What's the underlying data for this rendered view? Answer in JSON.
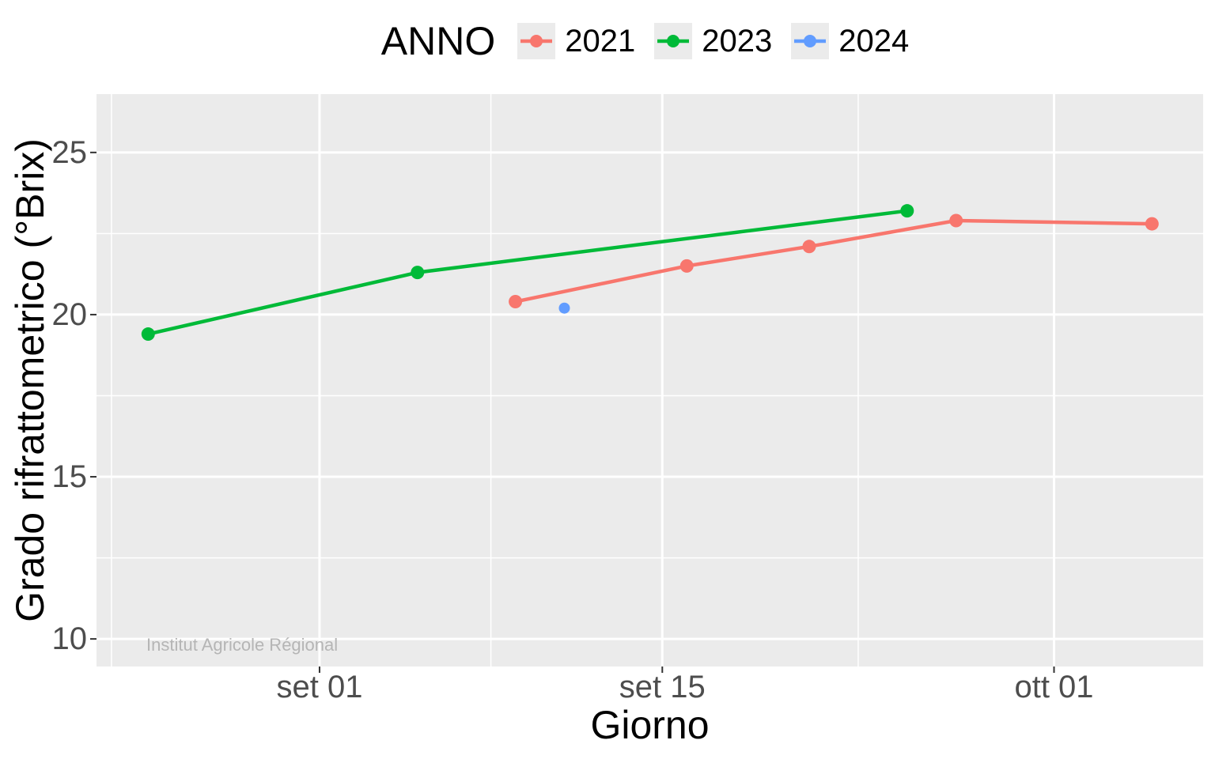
{
  "figure": {
    "panel_bg": "#EBEBEB",
    "grid_color": "#FFFFFF",
    "tick_color": "#333333",
    "tick_label_color": "#4D4D4D",
    "watermark": "Institut Agricole Régional",
    "watermark_color": "#B5B5B5"
  },
  "legend": {
    "title": "ANNO",
    "items": [
      {
        "label": "2021",
        "color": "#F8766D"
      },
      {
        "label": "2023",
        "color": "#00BA38"
      },
      {
        "label": "2024",
        "color": "#619CFF"
      }
    ]
  },
  "chart_data": {
    "type": "line",
    "title": "",
    "xlabel": "Giorno",
    "ylabel": "Grado rifrattometrico (°Brix)",
    "x_unit": "day offset from set 01",
    "x_domain_days": [
      -9.11,
      36.09
    ],
    "ylim": [
      9.15,
      26.8
    ],
    "grid": true,
    "legend_position": "top",
    "x_ticks": [
      {
        "label": "set 01",
        "day": 0
      },
      {
        "label": "set 15",
        "day": 14
      },
      {
        "label": "ott 01",
        "day": 30
      }
    ],
    "x_minor_days": [
      -8.5,
      7,
      22
    ],
    "y_ticks": [
      25,
      20,
      15,
      10
    ],
    "y_minor": [
      22.5,
      17.5,
      12.5
    ],
    "series": [
      {
        "name": "2021",
        "color": "#F8766D",
        "point_radius": 8.5,
        "points": [
          {
            "date": "set 09",
            "day": 8,
            "brix": 20.4
          },
          {
            "date": "set 16",
            "day": 15,
            "brix": 21.5
          },
          {
            "date": "set 21",
            "day": 20,
            "brix": 22.1
          },
          {
            "date": "set 27",
            "day": 26,
            "brix": 22.9
          },
          {
            "date": "ott 05",
            "day": 34,
            "brix": 22.8
          }
        ]
      },
      {
        "name": "2023",
        "color": "#00BA38",
        "point_radius": 8.5,
        "points": [
          {
            "date": "ago 25",
            "day": -7,
            "brix": 19.4
          },
          {
            "date": "set 05",
            "day": 4,
            "brix": 21.3
          },
          {
            "date": "set 25",
            "day": 24,
            "brix": 23.2
          }
        ]
      },
      {
        "name": "2024",
        "color": "#619CFF",
        "point_radius": 7,
        "points": [
          {
            "date": "set 11",
            "day": 10,
            "brix": 20.2
          }
        ]
      }
    ]
  }
}
